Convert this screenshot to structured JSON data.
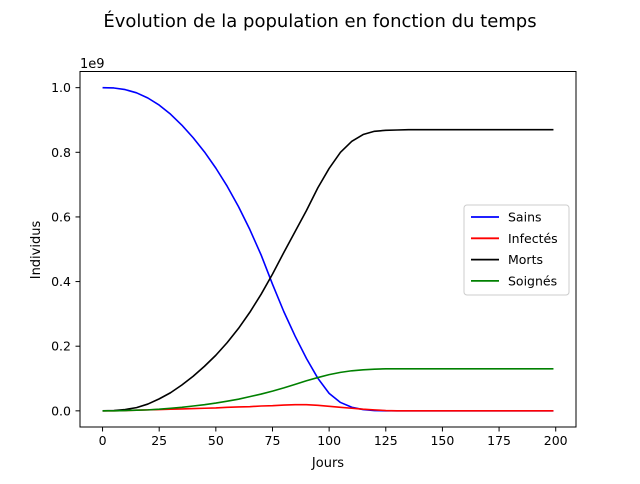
{
  "chart_data": {
    "type": "line",
    "title": "Évolution de la population en fonction du temps",
    "xlabel": "Jours",
    "ylabel": "Individus",
    "y_offset_text": "1e9",
    "xlim": [
      -9.95,
      208.95
    ],
    "ylim": [
      -0.05,
      1.05
    ],
    "x_ticks": [
      0,
      25,
      50,
      75,
      100,
      125,
      150,
      175,
      200
    ],
    "x_tick_labels": [
      "0",
      "25",
      "50",
      "75",
      "100",
      "125",
      "150",
      "175",
      "200"
    ],
    "y_ticks": [
      0.0,
      0.2,
      0.4,
      0.6,
      0.8,
      1.0
    ],
    "y_tick_labels": [
      "0.0",
      "0.2",
      "0.4",
      "0.6",
      "0.8",
      "1.0"
    ],
    "grid": false,
    "legend_position": "center-right",
    "x": [
      0,
      5,
      10,
      15,
      20,
      25,
      30,
      35,
      40,
      45,
      50,
      55,
      60,
      65,
      70,
      75,
      80,
      85,
      90,
      95,
      100,
      105,
      110,
      115,
      120,
      125,
      130,
      135,
      140,
      145,
      150,
      155,
      160,
      165,
      170,
      175,
      180,
      185,
      190,
      195,
      199
    ],
    "series": [
      {
        "name": "Sains",
        "color": "#0000ff",
        "values": [
          1.0,
          0.999,
          0.994,
          0.984,
          0.968,
          0.946,
          0.918,
          0.884,
          0.845,
          0.801,
          0.751,
          0.695,
          0.632,
          0.561,
          0.482,
          0.392,
          0.307,
          0.231,
          0.162,
          0.101,
          0.054,
          0.026,
          0.011,
          0.004,
          0.001,
          0.0,
          0.0,
          0.0,
          0.0,
          0.0,
          0.0,
          0.0,
          0.0,
          0.0,
          0.0,
          0.0,
          0.0,
          0.0,
          0.0,
          0.0,
          0.0
        ]
      },
      {
        "name": "Infectés",
        "color": "#ff0000",
        "values": [
          0.0,
          0.0,
          0.001,
          0.002,
          0.003,
          0.004,
          0.005,
          0.006,
          0.007,
          0.008,
          0.009,
          0.011,
          0.012,
          0.013,
          0.015,
          0.016,
          0.018,
          0.019,
          0.019,
          0.017,
          0.014,
          0.011,
          0.008,
          0.005,
          0.003,
          0.001,
          0.0,
          0.0,
          0.0,
          0.0,
          0.0,
          0.0,
          0.0,
          0.0,
          0.0,
          0.0,
          0.0,
          0.0,
          0.0,
          0.0,
          0.0
        ]
      },
      {
        "name": "Morts",
        "color": "#000000",
        "values": [
          0.0,
          0.001,
          0.004,
          0.01,
          0.021,
          0.037,
          0.056,
          0.08,
          0.107,
          0.138,
          0.172,
          0.211,
          0.255,
          0.305,
          0.361,
          0.423,
          0.49,
          0.555,
          0.62,
          0.69,
          0.75,
          0.8,
          0.834,
          0.855,
          0.865,
          0.868,
          0.869,
          0.87,
          0.87,
          0.87,
          0.87,
          0.87,
          0.87,
          0.87,
          0.87,
          0.87,
          0.87,
          0.87,
          0.87,
          0.87,
          0.87
        ]
      },
      {
        "name": "Soignés",
        "color": "#008000",
        "values": [
          0.0,
          0.0,
          0.001,
          0.002,
          0.003,
          0.005,
          0.008,
          0.011,
          0.015,
          0.019,
          0.024,
          0.03,
          0.036,
          0.044,
          0.052,
          0.061,
          0.071,
          0.082,
          0.093,
          0.103,
          0.112,
          0.119,
          0.124,
          0.127,
          0.129,
          0.13,
          0.13,
          0.13,
          0.13,
          0.13,
          0.13,
          0.13,
          0.13,
          0.13,
          0.13,
          0.13,
          0.13,
          0.13,
          0.13,
          0.13,
          0.13
        ]
      }
    ]
  }
}
